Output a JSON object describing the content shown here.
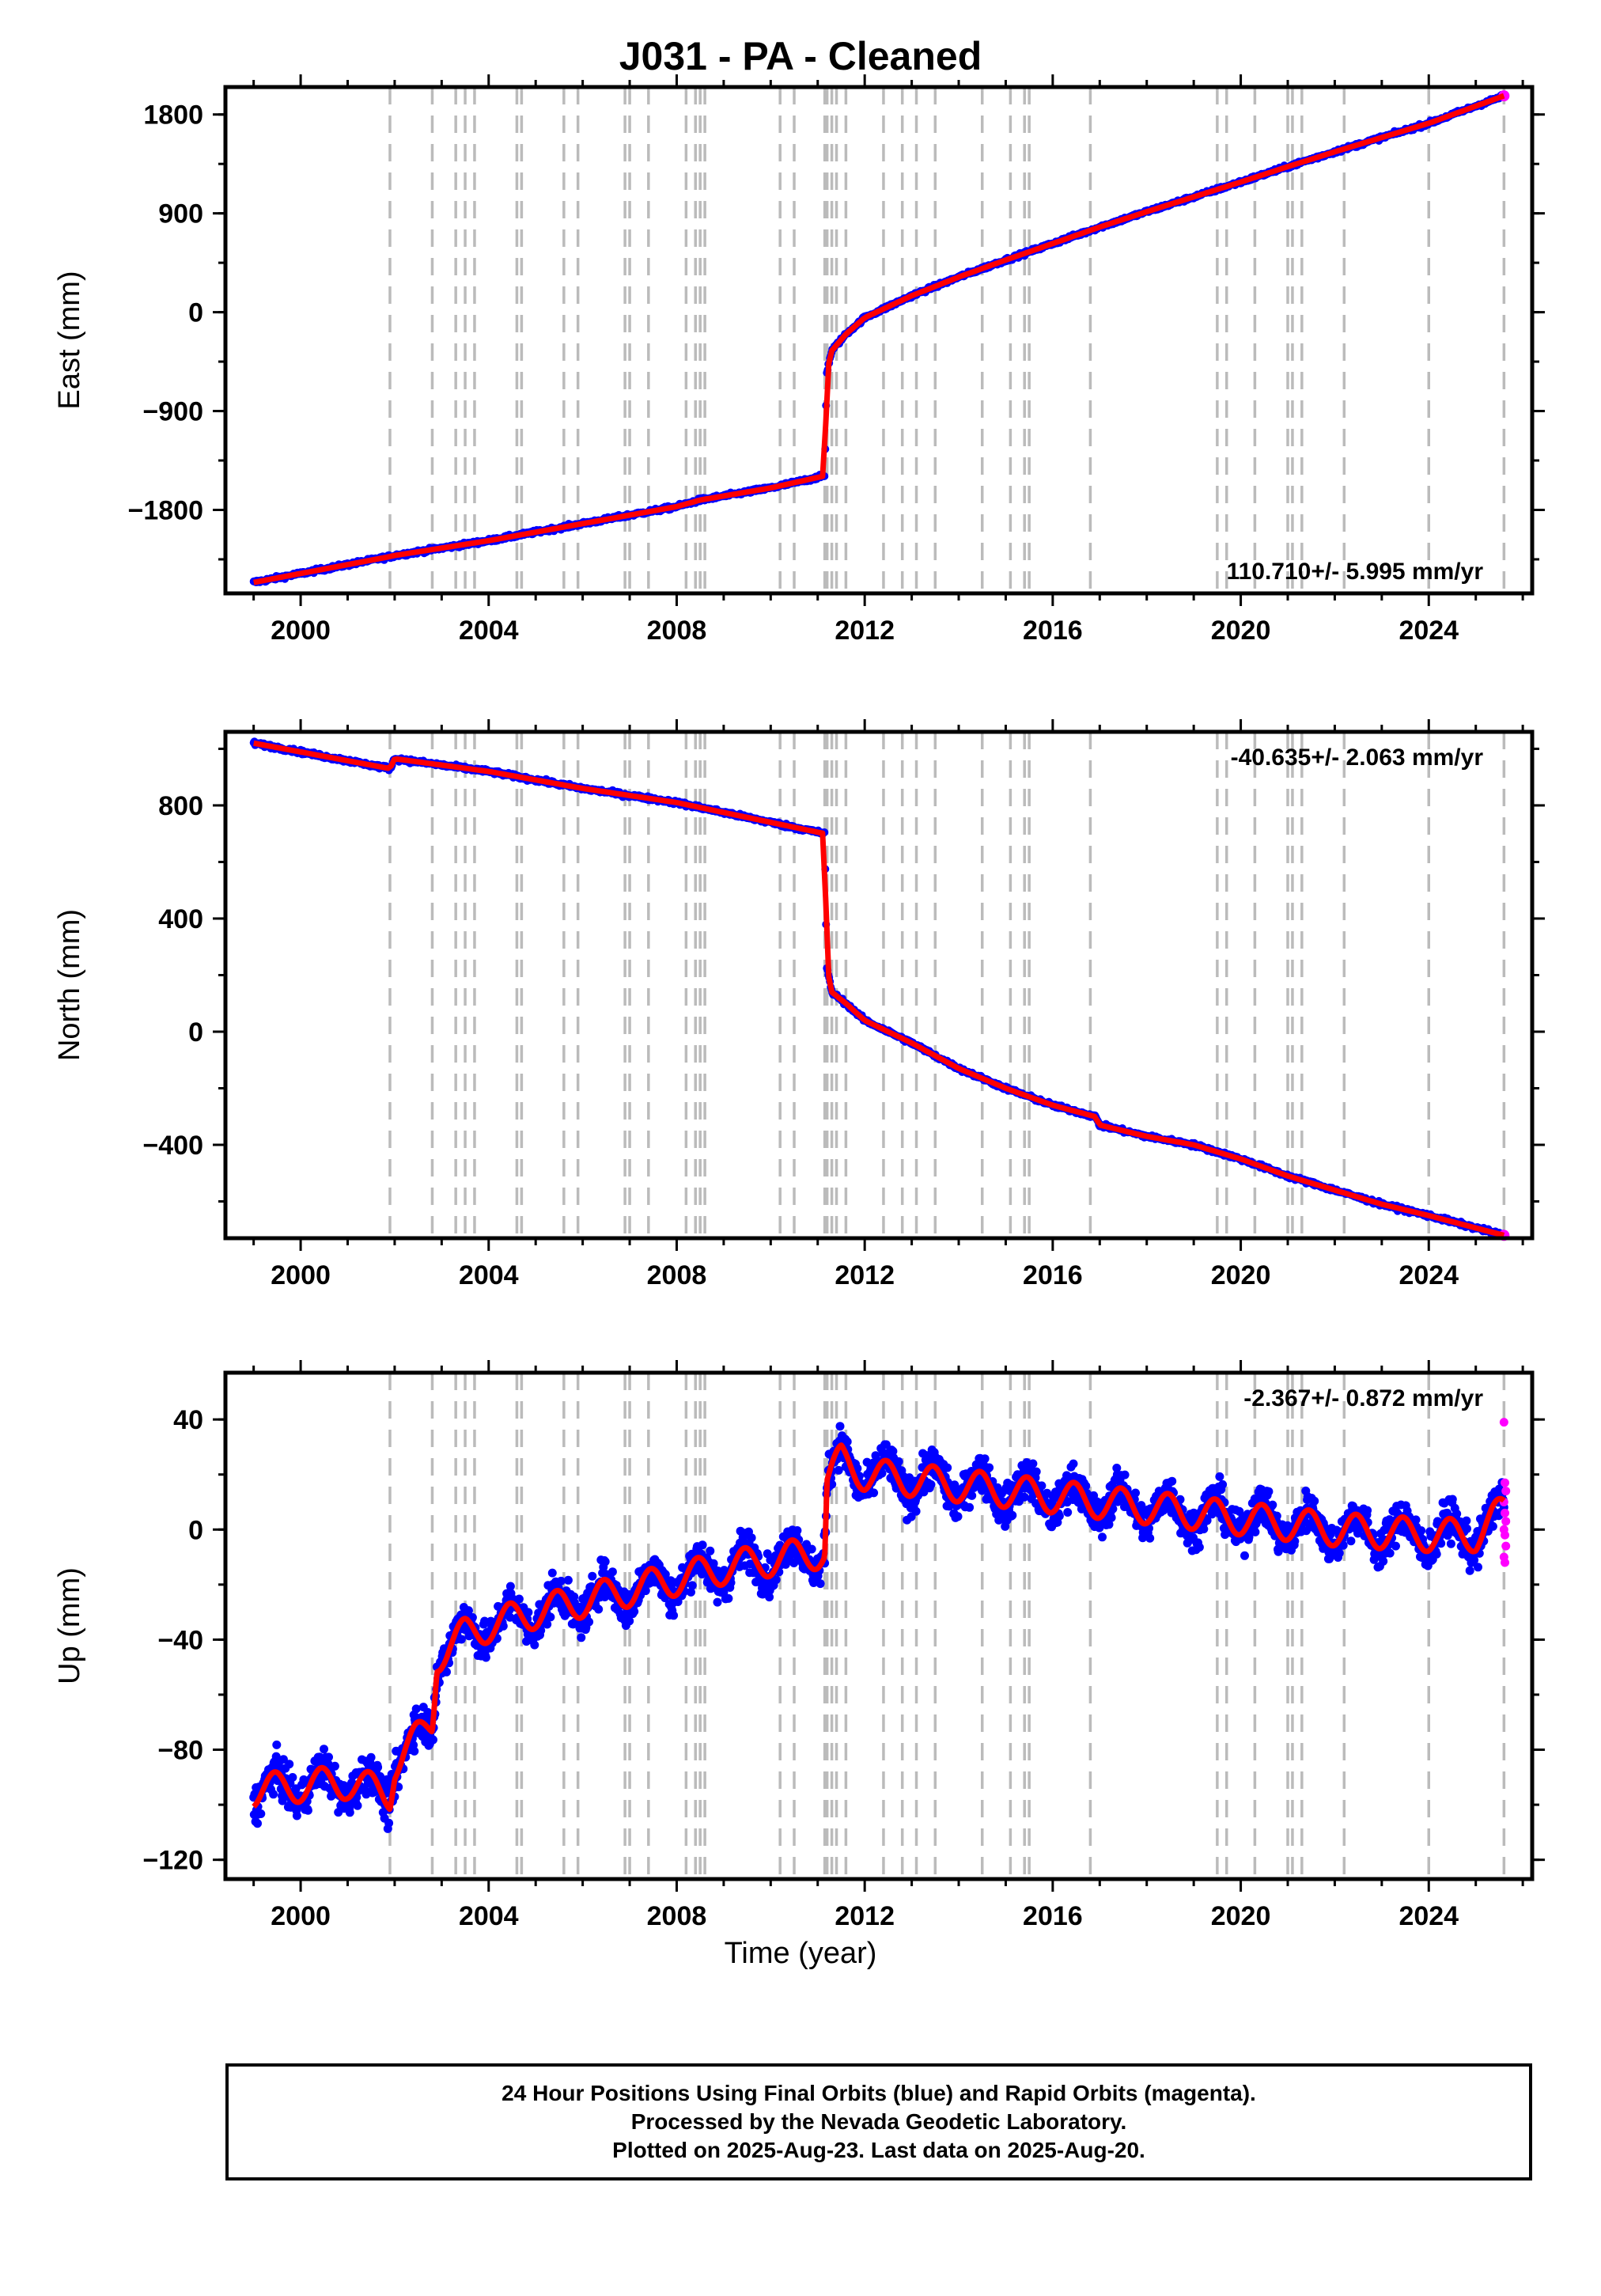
{
  "title": "J031  - PA - Cleaned",
  "x_axis_label": "Time (year)",
  "footer": {
    "line1": "24 Hour Positions Using Final Orbits (blue) and Rapid Orbits (magenta).",
    "line2": "Processed by the Nevada Geodetic Laboratory.",
    "line3": "Plotted on 2025-Aug-23. Last data on 2025-Aug-20."
  },
  "colors": {
    "final": "#0000ff",
    "rapid": "#ff00ff",
    "model": "#ff0000",
    "steps": "#bbbbbb"
  },
  "chart_data": [
    {
      "type": "scatter",
      "ylabel": "East (mm)",
      "rate_text": "110.710+/- 5.995 mm/yr",
      "xlim": [
        1998.4,
        2026.2
      ],
      "ylim": [
        -2560,
        2050
      ],
      "xticks": [
        2000,
        2004,
        2008,
        2012,
        2016,
        2020,
        2024
      ],
      "yticks": [
        -1800,
        -900,
        0,
        900,
        1800
      ],
      "x": [
        1999.0,
        2001.9,
        2002.0,
        2004.0,
        2006.0,
        2008.0,
        2008.5,
        2010.0,
        2011.15,
        2011.19,
        2011.3,
        2011.6,
        2012.0,
        2013.0,
        2014.0,
        2015.0,
        2016.0,
        2017.0,
        2018.0,
        2019.0,
        2020.0,
        2021.0,
        2022.0,
        2023.0,
        2024.0,
        2025.6
      ],
      "y": [
        -2460,
        -2225,
        -2215,
        -2080,
        -1925,
        -1770,
        -1710,
        -1600,
        -1490,
        -550,
        -350,
        -200,
        -50,
        150,
        320,
        475,
        625,
        775,
        915,
        1050,
        1185,
        1325,
        1460,
        1590,
        1720,
        1970
      ]
    },
    {
      "type": "scatter",
      "ylabel": "North (mm)",
      "rate_text": "-40.635+/- 2.063 mm/yr",
      "xlim": [
        1998.4,
        2026.2
      ],
      "ylim": [
        -730,
        1060
      ],
      "xticks": [
        2000,
        2004,
        2008,
        2012,
        2016,
        2020,
        2024
      ],
      "yticks": [
        -400,
        0,
        400,
        800
      ],
      "x": [
        1999.0,
        2001.9,
        2002.0,
        2004.0,
        2006.0,
        2008.0,
        2010.0,
        2011.15,
        2011.19,
        2011.3,
        2011.6,
        2012.0,
        2013.0,
        2014.0,
        2015.0,
        2016.0,
        2016.9,
        2017.0,
        2018.0,
        2019.0,
        2020.0,
        2021.0,
        2022.0,
        2023.0,
        2024.0,
        2025.6
      ],
      "y": [
        1020,
        930,
        965,
        920,
        860,
        810,
        740,
        700,
        230,
        140,
        100,
        40,
        -40,
        -130,
        -200,
        -260,
        -300,
        -330,
        -370,
        -400,
        -450,
        -510,
        -560,
        -610,
        -650,
        -720
      ]
    },
    {
      "type": "scatter",
      "ylabel": "Up (mm)",
      "rate_text": "-2.367+/- 0.872 mm/yr",
      "xlim": [
        1998.4,
        2026.2
      ],
      "ylim": [
        -127,
        57
      ],
      "xticks": [
        2000,
        2004,
        2008,
        2012,
        2016,
        2020,
        2024
      ],
      "yticks": [
        -120,
        -80,
        -40,
        0,
        40
      ],
      "x": [
        1999.0,
        2000.0,
        2001.0,
        2001.9,
        2002.0,
        2002.8,
        2002.9,
        2003.5,
        2004.0,
        2005.0,
        2006.0,
        2007.0,
        2008.0,
        2009.0,
        2010.0,
        2011.15,
        2011.2,
        2011.5,
        2012.0,
        2013.0,
        2014.0,
        2015.0,
        2016.0,
        2017.0,
        2018.0,
        2019.0,
        2020.0,
        2021.0,
        2022.0,
        2023.0,
        2024.0,
        2025.0,
        2025.6
      ],
      "y": [
        -95,
        -93,
        -92,
        -96,
        -85,
        -70,
        -46,
        -38,
        -35,
        -30,
        -26,
        -22,
        -18,
        -14,
        -11,
        -8,
        18,
        25,
        20,
        18,
        16,
        14,
        12,
        10,
        8,
        6,
        4,
        2,
        0,
        -1,
        -2,
        -2,
        7
      ],
      "annual_amplitude": 6,
      "rapid_y": [
        39,
        17,
        14,
        10,
        6,
        3,
        0,
        -2,
        -6,
        -10,
        -12
      ]
    }
  ],
  "step_lines": [
    2001.9,
    2002.8,
    2003.3,
    2003.5,
    2003.7,
    2004.6,
    2004.7,
    2005.6,
    2005.9,
    2006.9,
    2007.0,
    2007.4,
    2008.2,
    2008.4,
    2008.5,
    2008.6,
    2010.2,
    2010.5,
    2011.15,
    2011.2,
    2011.3,
    2011.4,
    2011.6,
    2012.4,
    2012.8,
    2013.1,
    2013.5,
    2014.5,
    2015.1,
    2015.4,
    2015.5,
    2016.8,
    2019.5,
    2019.7,
    2020.3,
    2021.0,
    2021.1,
    2021.3,
    2022.2,
    2024.0,
    2025.6
  ]
}
